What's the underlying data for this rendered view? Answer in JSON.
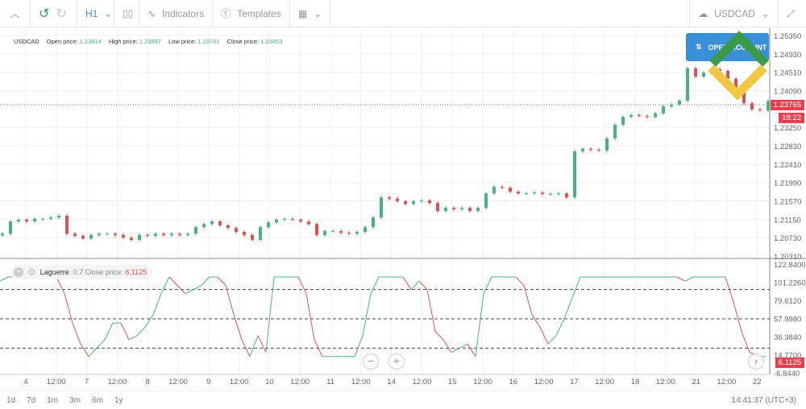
{
  "toolbar": {
    "timeframe": "H1",
    "indicators": "Indicators",
    "templates": "Templates",
    "symbol": "USDCAD"
  },
  "legend": {
    "symbol": "USDCAD",
    "open_label": "Open price:",
    "open": "1.23814",
    "high_label": "High price:",
    "high": "1.23897",
    "low_label": "Low price:",
    "low": "1.23741",
    "close_label": "Close price:",
    "close": "1.23853"
  },
  "open_account": "OPEN ACCOUNT",
  "price_axis": [
    "1.25350",
    "1.24930",
    "1.24510",
    "1.24090",
    "1.23250",
    "1.22830",
    "1.22410",
    "1.21990",
    "1.21570",
    "1.21150",
    "1.20730",
    "1.20310"
  ],
  "current_price": "1.23765",
  "countdown": "18:22",
  "indicator": {
    "name": "Laguerre",
    "param": "0.7",
    "source": "Close price",
    "value": "6.1125",
    "axis": [
      "122.8400",
      "101.2260",
      "79.6120",
      "57.9980",
      "36.3840",
      "14.7700",
      "-6.8440"
    ],
    "levels": [
      85,
      50,
      15
    ]
  },
  "time_axis": [
    "4",
    "12:00",
    "7",
    "12:00",
    "8",
    "12:00",
    "9",
    "12:00",
    "10",
    "12:00",
    "11",
    "12:00",
    "14",
    "12:00",
    "15",
    "12:00",
    "16",
    "12:00",
    "17",
    "12:00",
    "18",
    "12:00",
    "21",
    "12:00",
    "22"
  ],
  "periods": [
    "1d",
    "7d",
    "1m",
    "3m",
    "6m",
    "1y"
  ],
  "clock": "14:41:37 (UTC+3)",
  "colors": {
    "up": "#4caf85",
    "down": "#d9534f",
    "accent": "#3a8fd9",
    "label": "#e8414d"
  },
  "chart_data": {
    "type": "candlestick",
    "timeframe": "H1",
    "closes": [
      1.2082,
      1.211,
      1.2114,
      1.211,
      1.2116,
      1.2116,
      1.2119,
      1.2123,
      1.2082,
      1.2077,
      1.2071,
      1.2079,
      1.2082,
      1.2082,
      1.2079,
      1.2073,
      1.2068,
      1.2079,
      1.2077,
      1.2082,
      1.2079,
      1.2082,
      1.2079,
      1.2082,
      1.2097,
      1.2104,
      1.211,
      1.2101,
      1.2095,
      1.2086,
      1.2079,
      1.2068,
      1.2097,
      1.2108,
      1.2114,
      1.2116,
      1.2114,
      1.211,
      1.2104,
      1.2079,
      1.2088,
      1.2088,
      1.2084,
      1.2082,
      1.2086,
      1.2097,
      1.2119,
      1.2165,
      1.2162,
      1.2156,
      1.215,
      1.2156,
      1.2158,
      1.2152,
      1.2134,
      1.2141,
      1.2138,
      1.2141,
      1.2134,
      1.2141,
      1.2174,
      1.2189,
      1.2187,
      1.2178,
      1.2174,
      1.2174,
      1.2176,
      1.2173,
      1.2173,
      1.2174,
      1.2165,
      1.227,
      1.2276,
      1.2274,
      1.2272,
      1.23,
      1.2331,
      1.2349,
      1.2353,
      1.2351,
      1.2349,
      1.2357,
      1.2373,
      1.2377,
      1.2386,
      1.246,
      1.2441,
      1.245,
      1.2458,
      1.2454,
      1.2436,
      1.2414,
      1.238,
      1.2366,
      1.2364,
      1.2385
    ],
    "laguerre": [
      95,
      100,
      100,
      100,
      100,
      100,
      100,
      100,
      80,
      45,
      20,
      5,
      15,
      25,
      45,
      45,
      25,
      30,
      40,
      55,
      80,
      100,
      90,
      80,
      85,
      90,
      100,
      100,
      90,
      55,
      25,
      5,
      30,
      10,
      100,
      100,
      100,
      100,
      80,
      25,
      5,
      5,
      5,
      5,
      5,
      30,
      80,
      100,
      100,
      100,
      100,
      85,
      95,
      85,
      35,
      25,
      10,
      15,
      20,
      5,
      80,
      100,
      100,
      100,
      100,
      90,
      55,
      40,
      20,
      30,
      50,
      75,
      100,
      100,
      100,
      100,
      100,
      100,
      100,
      100,
      100,
      100,
      100,
      100,
      100,
      95,
      100,
      100,
      100,
      100,
      100,
      70,
      35,
      10,
      5,
      5
    ]
  }
}
